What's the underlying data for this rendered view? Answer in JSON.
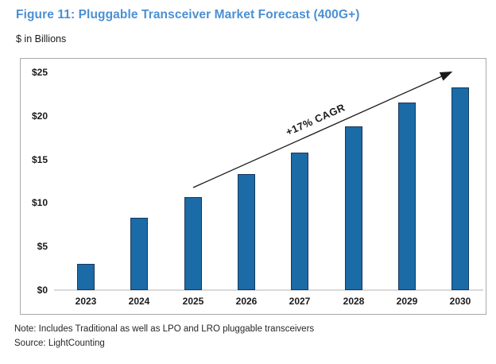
{
  "title": "Figure 11: Pluggable Transceiver Market Forecast (400G+)",
  "subtitle": "$ in Billions",
  "note": "Note: Includes Traditional as well as LPO and LRO pluggable transceivers",
  "source": "Source: LightCounting",
  "colors": {
    "title_blue": "#4A90D5",
    "bar_fill": "#1B6BA7",
    "bar_stroke": "#17375E",
    "baseline_gray": "#D9D9D9",
    "box_border": "#A9A9A9",
    "text": "#1A1A1A",
    "arrow": "#1A1A1A"
  },
  "chart_data": {
    "type": "bar",
    "categories": [
      "2023",
      "2024",
      "2025",
      "2026",
      "2027",
      "2028",
      "2029",
      "2030"
    ],
    "values": [
      3.0,
      8.3,
      10.7,
      13.3,
      15.8,
      18.8,
      21.5,
      23.3
    ],
    "title": "Figure 11: Pluggable Transceiver Market Forecast (400G+)",
    "xlabel": "",
    "ylabel": "$ in Billions",
    "ylim": [
      0,
      25
    ],
    "yticks": [
      0,
      5,
      10,
      15,
      20,
      25
    ],
    "ytick_labels": [
      "$0",
      "$5",
      "$10",
      "$15",
      "$20",
      "$25"
    ],
    "grid": false,
    "legend": "none",
    "annotation": {
      "text": "+17% CAGR",
      "arrow": true
    }
  }
}
